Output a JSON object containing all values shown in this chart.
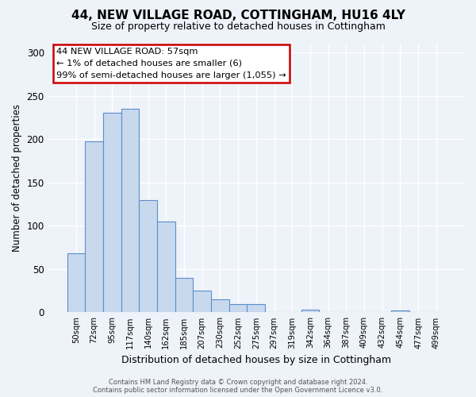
{
  "title": "44, NEW VILLAGE ROAD, COTTINGHAM, HU16 4LY",
  "subtitle": "Size of property relative to detached houses in Cottingham",
  "xlabel": "Distribution of detached houses by size in Cottingham",
  "ylabel": "Number of detached properties",
  "bin_labels": [
    "50sqm",
    "72sqm",
    "95sqm",
    "117sqm",
    "140sqm",
    "162sqm",
    "185sqm",
    "207sqm",
    "230sqm",
    "252sqm",
    "275sqm",
    "297sqm",
    "319sqm",
    "342sqm",
    "364sqm",
    "387sqm",
    "409sqm",
    "432sqm",
    "454sqm",
    "477sqm",
    "499sqm"
  ],
  "bar_heights": [
    68,
    197,
    230,
    235,
    130,
    105,
    40,
    25,
    15,
    10,
    10,
    0,
    0,
    3,
    0,
    0,
    0,
    0,
    2,
    0,
    0
  ],
  "bar_color": "#c8d9ee",
  "bar_edge_color": "#5b8fc9",
  "annotation_text": "44 NEW VILLAGE ROAD: 57sqm\n← 1% of detached houses are smaller (6)\n99% of semi-detached houses are larger (1,055) →",
  "annotation_box_color": "#cc0000",
  "ylim": [
    0,
    310
  ],
  "yticks": [
    0,
    50,
    100,
    150,
    200,
    250,
    300
  ],
  "bg_color": "#eef2f9",
  "plot_bg_color": "#eef2f9",
  "grid_color": "#ffffff",
  "footer_text": "Contains HM Land Registry data © Crown copyright and database right 2024.\nContains public sector information licensed under the Open Government Licence v3.0."
}
